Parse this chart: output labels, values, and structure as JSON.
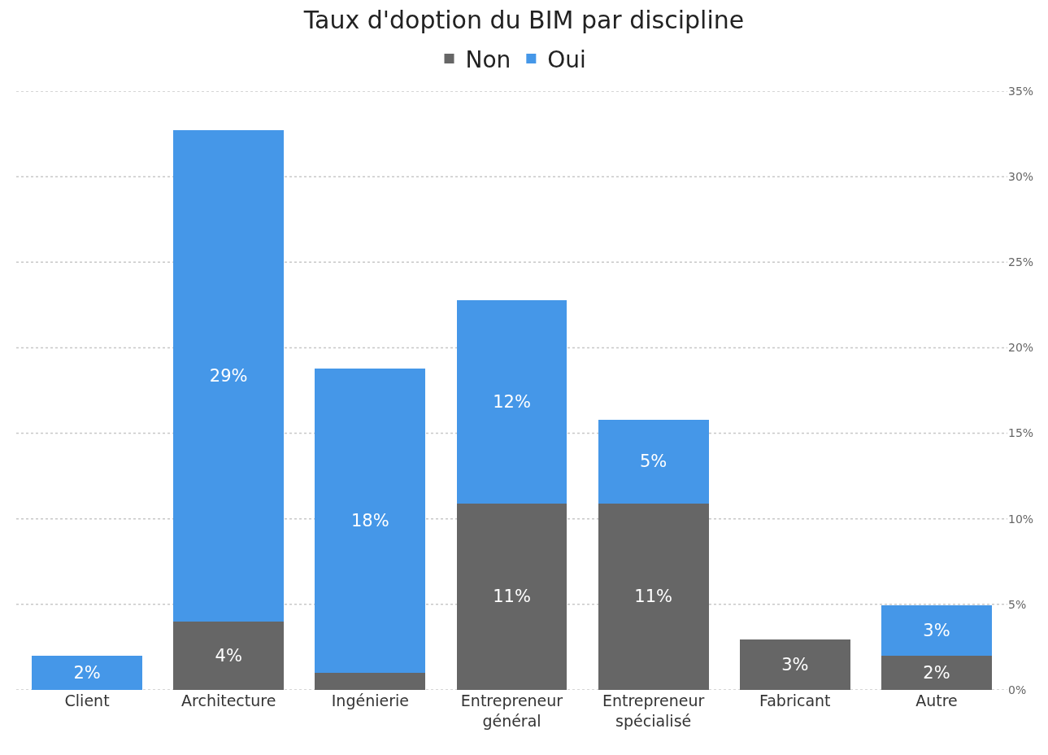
{
  "chart_data": {
    "type": "bar",
    "title": "Taux d'doption du BIM par discipline",
    "categories": [
      "Client",
      "Architecture",
      "Ingénierie",
      "Entrepreneur général",
      "Entrepreneur spécialisé",
      "Fabricant",
      "Autre"
    ],
    "stacked": true,
    "series": [
      {
        "name": "Non",
        "color": "#666666",
        "values": [
          null,
          4,
          1,
          10.9,
          10.9,
          2.95,
          2
        ],
        "value_labels": [
          null,
          "4%",
          null,
          "11%",
          "11%",
          "3%",
          "2%"
        ]
      },
      {
        "name": "Oui",
        "color": "#4597e8",
        "values": [
          2,
          28.7,
          17.8,
          11.9,
          4.9,
          null,
          2.95
        ],
        "value_labels": [
          "2%",
          "29%",
          "18%",
          "12%",
          "5%",
          null,
          "3%"
        ]
      }
    ],
    "ylim": [
      0,
      35
    ],
    "yticks": [
      {
        "value": 0,
        "label": "0%"
      },
      {
        "value": 5,
        "label": "5%"
      },
      {
        "value": 10,
        "label": "10%"
      },
      {
        "value": 15,
        "label": "15%"
      },
      {
        "value": 20,
        "label": "20%"
      },
      {
        "value": 25,
        "label": "25%"
      },
      {
        "value": 30,
        "label": "30%"
      },
      {
        "value": 35,
        "label": "35%"
      }
    ],
    "grid": "y",
    "legend": "top"
  }
}
